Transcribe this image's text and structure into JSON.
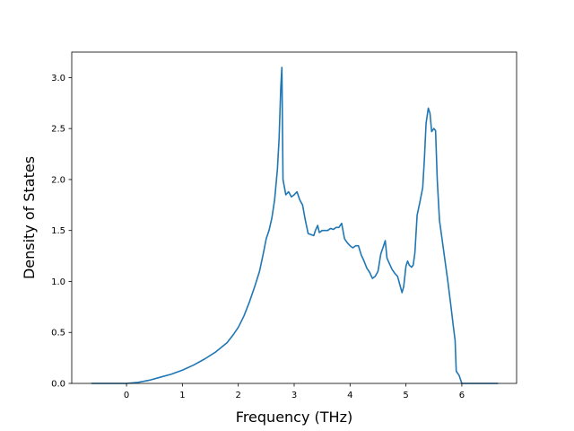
{
  "chart_data": {
    "type": "line",
    "xlabel": "Frequency (THz)",
    "ylabel": "Density of States",
    "xlim": [
      -0.98,
      6.98
    ],
    "ylim": [
      0,
      3.25
    ],
    "xticks": [
      0,
      1,
      2,
      3,
      4,
      5,
      6
    ],
    "xtick_labels": [
      "0",
      "1",
      "2",
      "3",
      "4",
      "5",
      "6"
    ],
    "yticks": [
      0.0,
      0.5,
      1.0,
      1.5,
      2.0,
      2.5,
      3.0
    ],
    "ytick_labels": [
      "0.0",
      "0.5",
      "1.0",
      "1.5",
      "2.0",
      "2.5",
      "3.0"
    ],
    "grid": false,
    "legend": "none",
    "series": [
      {
        "color": "#1f77b4",
        "x": [
          -0.63,
          0.0,
          0.2,
          0.4,
          0.6,
          0.8,
          1.0,
          1.2,
          1.4,
          1.6,
          1.8,
          1.9,
          2.0,
          2.1,
          2.2,
          2.3,
          2.38,
          2.45,
          2.5,
          2.55,
          2.6,
          2.65,
          2.7,
          2.73,
          2.76,
          2.78,
          2.8,
          2.85,
          2.9,
          2.95,
          3.0,
          3.05,
          3.1,
          3.15,
          3.2,
          3.25,
          3.3,
          3.35,
          3.38,
          3.42,
          3.45,
          3.5,
          3.55,
          3.6,
          3.65,
          3.7,
          3.75,
          3.8,
          3.85,
          3.9,
          3.95,
          4.0,
          4.05,
          4.1,
          4.15,
          4.2,
          4.25,
          4.3,
          4.35,
          4.4,
          4.45,
          4.5,
          4.55,
          4.6,
          4.63,
          4.66,
          4.7,
          4.75,
          4.8,
          4.85,
          4.9,
          4.93,
          4.96,
          5.0,
          5.03,
          5.06,
          5.1,
          5.13,
          5.16,
          5.2,
          5.25,
          5.3,
          5.33,
          5.36,
          5.4,
          5.43,
          5.46,
          5.5,
          5.53,
          5.56,
          5.6,
          5.65,
          5.7,
          5.75,
          5.8,
          5.85,
          5.88,
          5.9,
          5.95,
          6.0,
          6.05,
          6.65
        ],
        "y": [
          0.0,
          0.0,
          0.01,
          0.03,
          0.06,
          0.09,
          0.13,
          0.18,
          0.24,
          0.31,
          0.4,
          0.47,
          0.55,
          0.66,
          0.8,
          0.96,
          1.1,
          1.28,
          1.42,
          1.5,
          1.62,
          1.8,
          2.1,
          2.4,
          2.9,
          3.1,
          2.0,
          1.85,
          1.88,
          1.83,
          1.85,
          1.88,
          1.8,
          1.75,
          1.6,
          1.47,
          1.46,
          1.45,
          1.5,
          1.55,
          1.48,
          1.5,
          1.5,
          1.5,
          1.52,
          1.51,
          1.53,
          1.53,
          1.57,
          1.42,
          1.38,
          1.35,
          1.33,
          1.35,
          1.35,
          1.26,
          1.2,
          1.13,
          1.09,
          1.03,
          1.05,
          1.1,
          1.27,
          1.35,
          1.4,
          1.23,
          1.18,
          1.12,
          1.08,
          1.05,
          0.95,
          0.89,
          0.95,
          1.15,
          1.2,
          1.16,
          1.14,
          1.16,
          1.28,
          1.65,
          1.78,
          1.92,
          2.2,
          2.55,
          2.7,
          2.65,
          2.47,
          2.5,
          2.48,
          2.0,
          1.6,
          1.4,
          1.2,
          1.0,
          0.78,
          0.55,
          0.42,
          0.12,
          0.08,
          0.0,
          0.0,
          0.0
        ]
      }
    ]
  }
}
